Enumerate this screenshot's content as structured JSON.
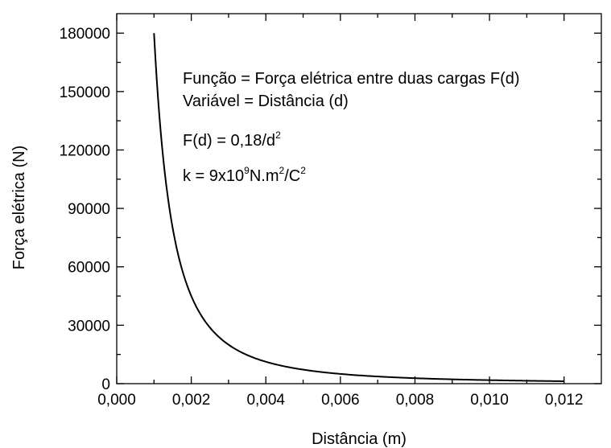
{
  "chart_data": {
    "type": "line",
    "xlabel": "Distância (m)",
    "ylabel": "Força elétrica (N)",
    "xlim": [
      0,
      0.013
    ],
    "ylim": [
      0,
      190000
    ],
    "x_ticks": [
      0,
      0.002,
      0.004,
      0.006,
      0.008,
      0.01,
      0.012
    ],
    "x_tick_labels": [
      "0,000",
      "0,002",
      "0,004",
      "0,006",
      "0,008",
      "0,010",
      "0,012"
    ],
    "y_ticks": [
      0,
      30000,
      60000,
      90000,
      120000,
      150000,
      180000
    ],
    "y_tick_labels": [
      "0",
      "30000",
      "60000",
      "90000",
      "120000",
      "150000",
      "180000"
    ],
    "grid": false,
    "function": "F(d) = 0.18 / d^2",
    "coefficient": 0.18,
    "x_start": 0.001,
    "x_end": 0.012,
    "series": [
      {
        "x": [
          0.001,
          0.0012,
          0.0015,
          0.002,
          0.0025,
          0.003,
          0.004,
          0.005,
          0.006,
          0.008,
          0.01,
          0.012
        ],
        "y": [
          180000,
          125000,
          80000,
          45000,
          28800,
          20000,
          11250,
          7200,
          5000,
          2812.5,
          1800,
          1250
        ],
        "color": "#000000"
      }
    ],
    "annotations": {
      "line1": "Função = Força elétrica entre duas cargas F(d)",
      "line2": "Variável = Distância (d)",
      "line3_main": "F(d) = 0,18/d",
      "line3_sup": "2",
      "line4_a": "k = 9x10",
      "line4_sup1": "9",
      "line4_b": "N.m",
      "line4_sup2": "2",
      "line4_c": "/C",
      "line4_sup3": "2"
    }
  }
}
